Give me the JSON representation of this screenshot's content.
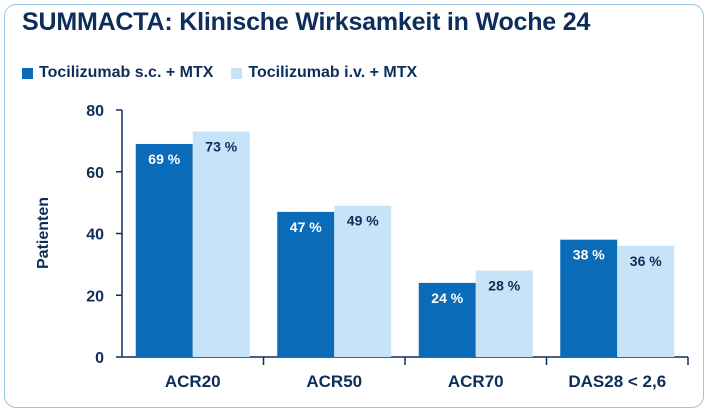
{
  "chart_data": {
    "type": "bar",
    "title": "SUMMACTA: Klinische Wirksamkeit in Woche 24",
    "ylabel": "Patienten",
    "xlabel": "",
    "ylim": [
      0,
      80
    ],
    "yticks": [
      "0",
      "20",
      "40",
      "60",
      "80"
    ],
    "categories": [
      "ACR20",
      "ACR50",
      "ACR70",
      "DAS28 < 2,6"
    ],
    "series": [
      {
        "name": "Tocilizumab s.c. + MTX",
        "color": "#0a6bb8",
        "values": [
          69,
          47,
          24,
          38
        ],
        "labels": [
          "69 %",
          "47 %",
          "24 %",
          "38 %"
        ]
      },
      {
        "name": "Tocilizumab i.v. + MTX",
        "color": "#c6e3f7",
        "values": [
          73,
          49,
          28,
          36
        ],
        "labels": [
          "73 %",
          "49 %",
          "28 %",
          "36 %"
        ]
      }
    ],
    "grid": false,
    "legend_position": "top-left"
  }
}
